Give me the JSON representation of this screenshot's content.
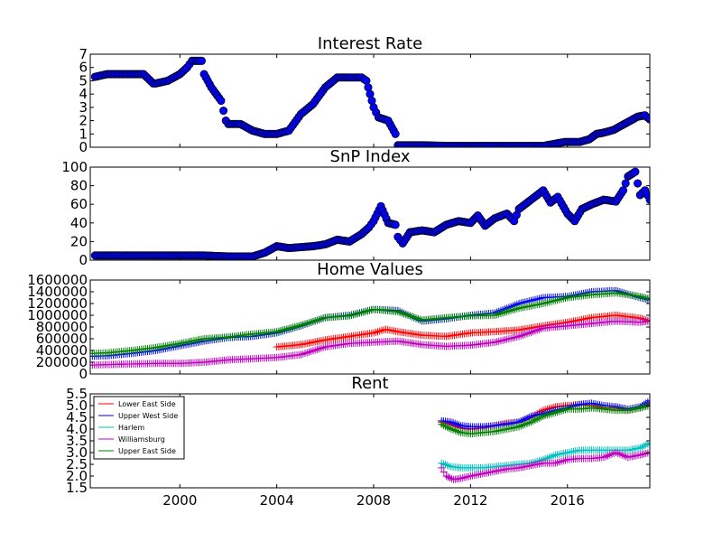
{
  "chart_data": [
    {
      "type": "scatter",
      "title": "Interest Rate",
      "xlabel": "",
      "ylabel": "",
      "xlim": [
        1996.3,
        2019.4
      ],
      "ylim": [
        0,
        7
      ],
      "yticks": [
        "0",
        "1",
        "2",
        "3",
        "4",
        "5",
        "6",
        "7"
      ],
      "series": [
        {
          "color": "#0000ff",
          "marker": "circle",
          "x": [
            1996.5,
            1997.0,
            1997.5,
            1998.0,
            1998.5,
            1998.9,
            1999.0,
            1999.5,
            2000.0,
            2000.3,
            2000.5,
            2000.9,
            2001.0,
            2001.3,
            2001.7,
            2001.9,
            2002.0,
            2002.5,
            2003.0,
            2003.5,
            2004.0,
            2004.5,
            2005.0,
            2005.5,
            2006.0,
            2006.5,
            2007.0,
            2007.5,
            2007.7,
            2008.0,
            2008.2,
            2008.6,
            2008.9,
            2009.0,
            2010.0,
            2011.0,
            2012.0,
            2013.0,
            2014.0,
            2015.0,
            2015.9,
            2016.5,
            2016.9,
            2017.2,
            2017.5,
            2017.9,
            2018.2,
            2018.5,
            2018.9,
            2019.2,
            2019.4
          ],
          "y": [
            5.3,
            5.5,
            5.5,
            5.5,
            5.5,
            4.8,
            4.8,
            5.0,
            5.5,
            6.0,
            6.5,
            6.5,
            5.5,
            4.5,
            3.5,
            2.0,
            1.75,
            1.75,
            1.25,
            1.0,
            1.0,
            1.25,
            2.5,
            3.25,
            4.5,
            5.25,
            5.25,
            5.25,
            5.0,
            3.0,
            2.25,
            2.0,
            1.0,
            0.15,
            0.15,
            0.1,
            0.1,
            0.1,
            0.1,
            0.1,
            0.4,
            0.4,
            0.6,
            1.0,
            1.1,
            1.3,
            1.6,
            1.9,
            2.3,
            2.4,
            2.1
          ]
        }
      ]
    },
    {
      "type": "scatter",
      "title": "SnP Index",
      "xlabel": "",
      "ylabel": "",
      "xlim": [
        1996.3,
        2019.4
      ],
      "ylim": [
        0,
        100
      ],
      "yticks": [
        "0",
        "20",
        "40",
        "60",
        "80",
        "100"
      ],
      "series": [
        {
          "color": "#0000ff",
          "marker": "circle",
          "x": [
            1996.5,
            1998.0,
            2000.0,
            2001.0,
            2002.0,
            2003.0,
            2003.5,
            2004.0,
            2004.5,
            2005.0,
            2005.5,
            2006.0,
            2006.5,
            2007.0,
            2007.5,
            2007.8,
            2008.0,
            2008.3,
            2008.6,
            2008.9,
            2009.0,
            2009.2,
            2009.5,
            2010.0,
            2010.5,
            2011.0,
            2011.5,
            2012.0,
            2012.3,
            2012.6,
            2013.0,
            2013.5,
            2013.8,
            2014.0,
            2014.5,
            2015.0,
            2015.3,
            2015.6,
            2016.0,
            2016.3,
            2016.6,
            2017.0,
            2017.5,
            2018.0,
            2018.3,
            2018.5,
            2018.8,
            2019.0,
            2019.2,
            2019.4
          ],
          "y": [
            5,
            5,
            5,
            5,
            4,
            4,
            8,
            15,
            13,
            14,
            15,
            17,
            22,
            20,
            28,
            35,
            42,
            58,
            40,
            38,
            25,
            18,
            30,
            32,
            30,
            38,
            42,
            40,
            48,
            37,
            45,
            50,
            42,
            55,
            65,
            75,
            62,
            68,
            50,
            42,
            55,
            60,
            65,
            63,
            75,
            90,
            95,
            70,
            75,
            65
          ]
        }
      ]
    },
    {
      "type": "scatter",
      "title": "Home Values",
      "xlabel": "",
      "ylabel": "",
      "xlim": [
        1996.3,
        2019.4
      ],
      "ylim": [
        0,
        1600000
      ],
      "yticks": [
        "0",
        "200000",
        "400000",
        "600000",
        "800000",
        "1000000",
        "1200000",
        "1400000",
        "1600000"
      ],
      "series": [
        {
          "name": "Lower East Side",
          "color": "#ff0000",
          "marker": "plus",
          "x": [
            2004.0,
            2005.0,
            2006.0,
            2007.0,
            2008.0,
            2008.5,
            2009.0,
            2010.0,
            2011.0,
            2012.0,
            2013.0,
            2014.0,
            2015.0,
            2016.0,
            2017.0,
            2018.0,
            2019.0,
            2019.4
          ],
          "y": [
            460000,
            500000,
            580000,
            640000,
            700000,
            760000,
            720000,
            660000,
            640000,
            700000,
            720000,
            750000,
            820000,
            880000,
            960000,
            1000000,
            950000,
            900000
          ]
        },
        {
          "name": "Upper West Side",
          "color": "#0000ff",
          "marker": "plus",
          "x": [
            1996.3,
            1997.0,
            1998.0,
            1999.0,
            2000.0,
            2001.0,
            2002.0,
            2003.0,
            2004.0,
            2005.0,
            2006.0,
            2007.0,
            2008.0,
            2009.0,
            2010.0,
            2011.0,
            2012.0,
            2013.0,
            2014.0,
            2015.0,
            2016.0,
            2017.0,
            2018.0,
            2019.0,
            2019.4
          ],
          "y": [
            300000,
            310000,
            350000,
            400000,
            480000,
            560000,
            620000,
            640000,
            700000,
            820000,
            960000,
            1000000,
            1100000,
            1080000,
            900000,
            940000,
            1000000,
            1040000,
            1200000,
            1300000,
            1320000,
            1400000,
            1420000,
            1300000,
            1260000
          ]
        },
        {
          "name": "Williamsburg",
          "color": "#bf00bf",
          "marker": "plus",
          "x": [
            1996.3,
            1997.0,
            1998.0,
            1999.0,
            2000.0,
            2001.0,
            2002.0,
            2003.0,
            2004.0,
            2005.0,
            2006.0,
            2007.0,
            2008.0,
            2009.0,
            2010.0,
            2011.0,
            2012.0,
            2013.0,
            2014.0,
            2015.0,
            2016.0,
            2017.0,
            2018.0,
            2019.0,
            2019.4
          ],
          "y": [
            150000,
            160000,
            170000,
            180000,
            180000,
            200000,
            240000,
            260000,
            280000,
            330000,
            460000,
            520000,
            540000,
            560000,
            500000,
            470000,
            490000,
            540000,
            640000,
            780000,
            820000,
            860000,
            900000,
            880000,
            900000
          ]
        },
        {
          "name": "Upper East Side",
          "color": "#008000",
          "marker": "plus",
          "x": [
            1996.3,
            1997.0,
            1998.0,
            1999.0,
            2000.0,
            2001.0,
            2002.0,
            2003.0,
            2004.0,
            2005.0,
            2006.0,
            2007.0,
            2008.0,
            2009.0,
            2010.0,
            2011.0,
            2012.0,
            2013.0,
            2014.0,
            2015.0,
            2016.0,
            2017.0,
            2018.0,
            2019.0,
            2019.4
          ],
          "y": [
            350000,
            360000,
            400000,
            450000,
            520000,
            600000,
            630000,
            680000,
            720000,
            830000,
            960000,
            990000,
            1100000,
            1060000,
            920000,
            960000,
            990000,
            1000000,
            1120000,
            1200000,
            1300000,
            1350000,
            1380000,
            1320000,
            1280000
          ]
        }
      ]
    },
    {
      "type": "scatter",
      "title": "Rent",
      "xlabel": "",
      "ylabel": "",
      "xlim": [
        1996.3,
        2019.4
      ],
      "ylim": [
        1.5,
        5.5
      ],
      "yticks": [
        "1.5",
        "2.0",
        "2.5",
        "3.0",
        "3.5",
        "4.0",
        "4.5",
        "5.0",
        "5.5"
      ],
      "xticks": [
        "2000",
        "2004",
        "2008",
        "2012",
        "2016"
      ],
      "xtick_values": [
        2000,
        2004,
        2008,
        2012,
        2016
      ],
      "legend": {
        "placement": "upper-left",
        "entries": [
          "Lower East Side",
          "Upper West Side",
          "Harlem",
          "Williamsburg",
          "Upper East Side"
        ]
      },
      "series": [
        {
          "name": "Lower East Side",
          "color": "#ff0000",
          "marker": "plus",
          "x": [
            2010.8,
            2011.2,
            2011.6,
            2012.0,
            2012.5,
            2013.0,
            2013.5,
            2014.0,
            2014.5,
            2015.0,
            2015.5,
            2016.0,
            2016.5,
            2017.0,
            2017.5,
            2018.0,
            2018.5,
            2019.0,
            2019.4
          ],
          "y": [
            4.3,
            4.2,
            4.05,
            4.0,
            4.05,
            4.15,
            4.25,
            4.3,
            4.5,
            4.8,
            4.95,
            5.0,
            5.05,
            5.0,
            4.9,
            4.9,
            4.8,
            4.9,
            5.1
          ]
        },
        {
          "name": "Upper West Side",
          "color": "#0000ff",
          "marker": "plus",
          "x": [
            2010.8,
            2011.2,
            2011.6,
            2012.0,
            2012.5,
            2013.0,
            2013.5,
            2014.0,
            2014.5,
            2015.0,
            2015.5,
            2016.0,
            2016.5,
            2017.0,
            2017.5,
            2018.0,
            2018.5,
            2019.0,
            2019.4
          ],
          "y": [
            4.35,
            4.3,
            4.15,
            4.1,
            4.1,
            4.15,
            4.2,
            4.3,
            4.55,
            4.65,
            4.8,
            4.9,
            5.05,
            5.1,
            5.0,
            4.95,
            4.85,
            4.95,
            5.2
          ]
        },
        {
          "name": "Harlem",
          "color": "#00bfbf",
          "marker": "plus",
          "x": [
            2010.8,
            2011.2,
            2011.6,
            2012.0,
            2012.5,
            2013.0,
            2013.5,
            2014.0,
            2014.5,
            2015.0,
            2015.5,
            2016.0,
            2016.5,
            2017.0,
            2017.5,
            2018.0,
            2018.5,
            2019.0,
            2019.4
          ],
          "y": [
            2.55,
            2.4,
            2.35,
            2.35,
            2.35,
            2.4,
            2.45,
            2.5,
            2.55,
            2.7,
            2.9,
            3.0,
            3.1,
            3.1,
            3.1,
            3.1,
            3.1,
            3.2,
            3.4
          ]
        },
        {
          "name": "Williamsburg",
          "color": "#bf00bf",
          "marker": "plus",
          "x": [
            2010.8,
            2011.0,
            2011.3,
            2011.6,
            2012.0,
            2012.5,
            2013.0,
            2013.5,
            2014.0,
            2014.5,
            2015.0,
            2015.5,
            2016.0,
            2016.5,
            2017.0,
            2017.5,
            2018.0,
            2018.5,
            2019.0,
            2019.4
          ],
          "y": [
            2.35,
            2.0,
            1.85,
            1.9,
            2.0,
            2.1,
            2.2,
            2.3,
            2.35,
            2.45,
            2.55,
            2.55,
            2.7,
            2.75,
            2.75,
            2.8,
            3.0,
            2.8,
            2.9,
            3.0
          ]
        },
        {
          "name": "Upper East Side",
          "color": "#008000",
          "marker": "plus",
          "x": [
            2010.8,
            2011.2,
            2011.6,
            2012.0,
            2012.5,
            2013.0,
            2013.5,
            2014.0,
            2014.5,
            2015.0,
            2015.5,
            2016.0,
            2016.5,
            2017.0,
            2017.5,
            2018.0,
            2018.5,
            2019.0,
            2019.4
          ],
          "y": [
            4.2,
            4.0,
            3.85,
            3.8,
            3.85,
            3.9,
            4.0,
            4.1,
            4.3,
            4.55,
            4.7,
            4.85,
            4.85,
            4.9,
            4.85,
            4.8,
            4.8,
            4.9,
            5.0
          ]
        }
      ]
    }
  ]
}
